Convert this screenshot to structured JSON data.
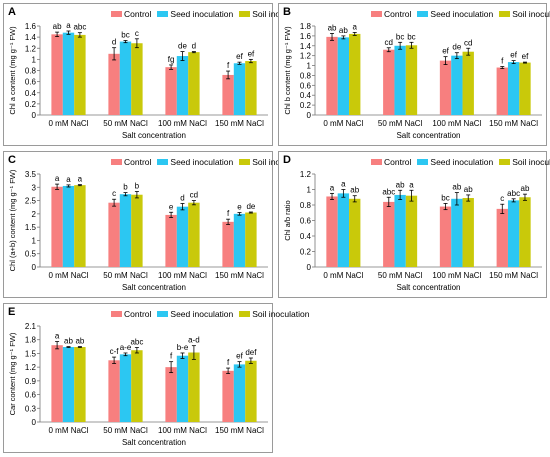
{
  "colors": {
    "Control": "#f77f7f",
    "Seed inoculation": "#2cc7f2",
    "Soil inoculation": "#c9c90a"
  },
  "chart_data": [
    {
      "id": "A",
      "type": "bar",
      "ylabel": "Chl a content (mg g⁻¹ FW)",
      "xlabel": "Salt concentration",
      "ylim": [
        0,
        1.6
      ],
      "yticks": [
        "0",
        "0.2",
        "0.4",
        "0.6",
        "0.8",
        "1",
        "1.2",
        "1.4",
        "1.6"
      ],
      "categories": [
        "0 mM NaCl",
        "50 mM NaCl",
        "100 mM NaCl",
        "150 mM NaCl"
      ],
      "series": [
        {
          "name": "Control",
          "values": [
            1.45,
            1.1,
            0.86,
            0.72
          ],
          "errors": [
            0.04,
            0.11,
            0.04,
            0.07
          ],
          "letters": [
            "ab",
            "d",
            "fg",
            "f"
          ]
        },
        {
          "name": "Seed inoculation",
          "values": [
            1.48,
            1.32,
            1.06,
            0.93
          ],
          "errors": [
            0.03,
            0.02,
            0.08,
            0.02
          ],
          "letters": [
            "a",
            "bc",
            "de",
            "ef"
          ]
        },
        {
          "name": "Soil inoculation",
          "values": [
            1.44,
            1.29,
            1.13,
            0.97
          ],
          "errors": [
            0.04,
            0.08,
            0.01,
            0.03
          ],
          "letters": [
            "abc",
            "c",
            "d",
            "ef"
          ]
        }
      ]
    },
    {
      "id": "B",
      "type": "bar",
      "ylabel": "Chl b content (mg g⁻¹ FW)",
      "xlabel": "Salt concentration",
      "ylim": [
        0,
        1.8
      ],
      "yticks": [
        "0",
        "0.2",
        "0.4",
        "0.6",
        "0.8",
        "1",
        "1.2",
        "1.4",
        "1.6",
        "1.8"
      ],
      "categories": [
        "0 mM NaCl",
        "50 mM NaCl",
        "100 mM NaCl",
        "150 mM NaCl"
      ],
      "series": [
        {
          "name": "Control",
          "values": [
            1.58,
            1.32,
            1.1,
            0.96
          ],
          "errors": [
            0.07,
            0.04,
            0.08,
            0.02
          ],
          "letters": [
            "ab",
            "cd",
            "ef",
            "f"
          ]
        },
        {
          "name": "Seed inoculation",
          "values": [
            1.57,
            1.4,
            1.2,
            1.07
          ],
          "errors": [
            0.03,
            0.07,
            0.06,
            0.03
          ],
          "letters": [
            "ab",
            "bc",
            "de",
            "ef"
          ]
        },
        {
          "name": "Soil inoculation",
          "values": [
            1.64,
            1.41,
            1.28,
            1.06
          ],
          "errors": [
            0.03,
            0.06,
            0.07,
            0.01
          ],
          "letters": [
            "a",
            "bc",
            "cd",
            "ef"
          ]
        }
      ]
    },
    {
      "id": "C",
      "type": "bar",
      "ylabel": "Chl (a+b) content (mg g⁻¹ FW)",
      "xlabel": "Salt concentration",
      "ylim": [
        0,
        3.5
      ],
      "yticks": [
        "0",
        "0.5",
        "1",
        "1.5",
        "2",
        "2.5",
        "3",
        "3.5"
      ],
      "categories": [
        "0 mM NaCl",
        "50 mM NaCl",
        "100 mM NaCl",
        "150 mM NaCl"
      ],
      "series": [
        {
          "name": "Control",
          "values": [
            3.02,
            2.42,
            1.96,
            1.7
          ],
          "errors": [
            0.1,
            0.13,
            0.1,
            0.1
          ],
          "letters": [
            "a",
            "c",
            "e",
            "f"
          ]
        },
        {
          "name": "Seed inoculation",
          "values": [
            3.05,
            2.74,
            2.27,
            2.0
          ],
          "errors": [
            0.04,
            0.06,
            0.12,
            0.05
          ],
          "letters": [
            "a",
            "b",
            "d",
            "e"
          ]
        },
        {
          "name": "Soil inoculation",
          "values": [
            3.08,
            2.72,
            2.42,
            2.05
          ],
          "errors": [
            0.02,
            0.12,
            0.08,
            0.02
          ],
          "letters": [
            "a",
            "b",
            "cd",
            "de"
          ]
        }
      ]
    },
    {
      "id": "D",
      "type": "bar",
      "ylabel": "Chl a/b ratio",
      "xlabel": "Salt concentration",
      "ylim": [
        0,
        1.2
      ],
      "yticks": [
        "0",
        "0.2",
        "0.4",
        "0.6",
        "0.8",
        "1",
        "1.2"
      ],
      "categories": [
        "0 mM NaCl",
        "50 mM NaCl",
        "100 mM NaCl",
        "150 mM NaCl"
      ],
      "series": [
        {
          "name": "Control",
          "values": [
            0.91,
            0.84,
            0.78,
            0.75
          ],
          "errors": [
            0.04,
            0.06,
            0.04,
            0.06
          ],
          "letters": [
            "a",
            "abc",
            "bc",
            "c"
          ]
        },
        {
          "name": "Seed inoculation",
          "values": [
            0.95,
            0.93,
            0.88,
            0.86
          ],
          "errors": [
            0.05,
            0.06,
            0.08,
            0.02
          ],
          "letters": [
            "a",
            "ab",
            "ab",
            "abc"
          ]
        },
        {
          "name": "Soil inoculation",
          "values": [
            0.88,
            0.92,
            0.89,
            0.9
          ],
          "errors": [
            0.04,
            0.07,
            0.04,
            0.04
          ],
          "letters": [
            "ab",
            "a",
            "ab",
            "ab"
          ]
        }
      ]
    },
    {
      "id": "E",
      "type": "bar",
      "ylabel": "Car content (mg g⁻¹ FW)",
      "xlabel": "Salt concentration",
      "ylim": [
        0,
        2.1
      ],
      "yticks": [
        "0",
        "0.3",
        "0.6",
        "0.9",
        "1.2",
        "1.5",
        "1.8",
        "2.1"
      ],
      "categories": [
        "0 mM NaCl",
        "50 mM NaCl",
        "100 mM NaCl",
        "150 mM NaCl"
      ],
      "series": [
        {
          "name": "Control",
          "values": [
            1.68,
            1.35,
            1.2,
            1.12
          ],
          "errors": [
            0.08,
            0.07,
            0.12,
            0.06
          ],
          "letters": [
            "a",
            "c-f",
            "f",
            "f"
          ]
        },
        {
          "name": "Seed inoculation",
          "values": [
            1.64,
            1.48,
            1.45,
            1.26
          ],
          "errors": [
            0.01,
            0.03,
            0.06,
            0.06
          ],
          "letters": [
            "ab",
            "a-e",
            "b-e",
            "ef"
          ]
        },
        {
          "name": "Soil inoculation",
          "values": [
            1.64,
            1.57,
            1.52,
            1.34
          ],
          "errors": [
            0.01,
            0.06,
            0.15,
            0.06
          ],
          "letters": [
            "ab",
            "abc",
            "a-d",
            "def"
          ]
        }
      ]
    }
  ]
}
